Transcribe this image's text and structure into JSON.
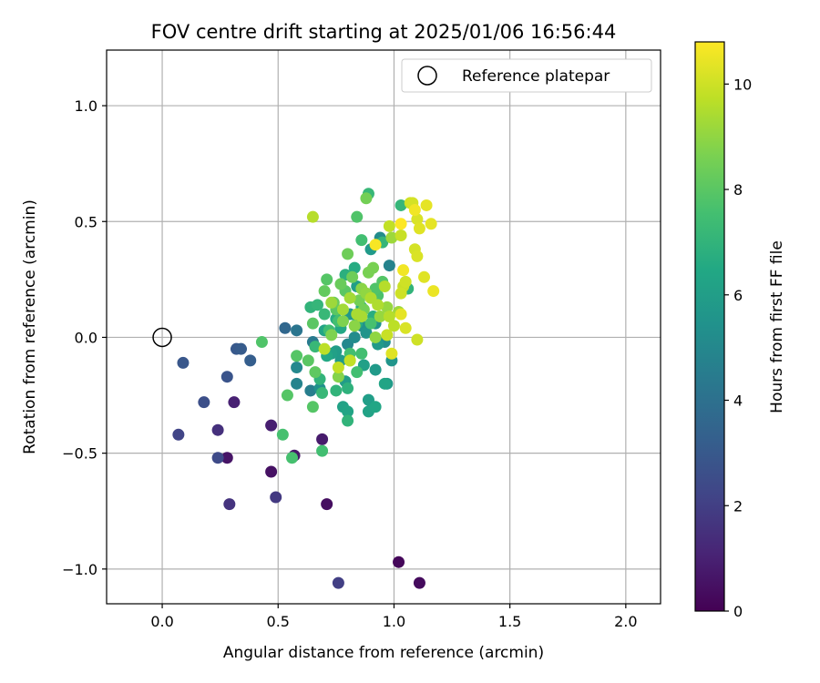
{
  "chart_data": {
    "type": "scatter",
    "title": "FOV centre drift starting at 2025/01/06 16:56:44",
    "xlabel": "Angular distance from reference (arcmin)",
    "ylabel": "Rotation from reference (arcmin)",
    "xlim": [
      -0.24,
      2.15
    ],
    "ylim": [
      -1.15,
      1.24
    ],
    "xticks": [
      0.0,
      0.5,
      1.0,
      1.5,
      2.0
    ],
    "xtick_labels": [
      "0.0",
      "0.5",
      "1.0",
      "1.5",
      "2.0"
    ],
    "yticks": [
      -1.0,
      -0.5,
      0.0,
      0.5,
      1.0
    ],
    "ytick_labels": [
      "−1.0",
      "−0.5",
      "0.0",
      "0.5",
      "1.0"
    ],
    "grid": true,
    "legend": {
      "position": "top-right",
      "entries": [
        "Reference platepar"
      ]
    },
    "reference_point": {
      "x": 0.0,
      "y": 0.0,
      "label": "Reference platepar"
    },
    "colorbar": {
      "label": "Hours from first FF file",
      "colormap": "viridis",
      "range": [
        0,
        10.8
      ],
      "ticks": [
        0,
        2,
        4,
        6,
        8,
        10
      ],
      "tick_labels": [
        "0",
        "2",
        "4",
        "6",
        "8",
        "10"
      ]
    },
    "points": [
      {
        "x": 1.02,
        "y": -0.97,
        "c": 0.2
      },
      {
        "x": 1.11,
        "y": -1.06,
        "c": 0.3
      },
      {
        "x": 0.71,
        "y": -0.72,
        "c": 0.4
      },
      {
        "x": 0.47,
        "y": -0.58,
        "c": 0.5
      },
      {
        "x": 0.28,
        "y": -0.52,
        "c": 0.6
      },
      {
        "x": 0.57,
        "y": -0.51,
        "c": 0.7
      },
      {
        "x": 0.69,
        "y": -0.44,
        "c": 0.8
      },
      {
        "x": 0.47,
        "y": -0.38,
        "c": 0.9
      },
      {
        "x": 0.31,
        "y": -0.28,
        "c": 1.0
      },
      {
        "x": 0.24,
        "y": -0.4,
        "c": 1.5
      },
      {
        "x": 0.29,
        "y": -0.72,
        "c": 1.6
      },
      {
        "x": 0.49,
        "y": -0.69,
        "c": 1.8
      },
      {
        "x": 0.76,
        "y": -1.06,
        "c": 2.0
      },
      {
        "x": 0.07,
        "y": -0.42,
        "c": 2.2
      },
      {
        "x": 0.24,
        "y": -0.52,
        "c": 2.4
      },
      {
        "x": 0.18,
        "y": -0.28,
        "c": 2.6
      },
      {
        "x": 0.28,
        "y": -0.17,
        "c": 2.8
      },
      {
        "x": 0.09,
        "y": -0.11,
        "c": 2.9
      },
      {
        "x": 0.32,
        "y": -0.05,
        "c": 3.0
      },
      {
        "x": 0.34,
        "y": -0.05,
        "c": 3.1
      },
      {
        "x": 0.38,
        "y": -0.1,
        "c": 3.2
      },
      {
        "x": 0.53,
        "y": 0.04,
        "c": 3.6
      },
      {
        "x": 0.58,
        "y": 0.03,
        "c": 4.2
      },
      {
        "x": 0.65,
        "y": -0.02,
        "c": 4.4
      },
      {
        "x": 0.64,
        "y": -0.23,
        "c": 4.6
      },
      {
        "x": 0.58,
        "y": -0.2,
        "c": 4.8
      },
      {
        "x": 0.58,
        "y": -0.13,
        "c": 5.0
      },
      {
        "x": 0.68,
        "y": -0.22,
        "c": 5.4
      },
      {
        "x": 0.8,
        "y": -0.03,
        "c": 5.0
      },
      {
        "x": 0.83,
        "y": 0.0,
        "c": 5.2
      },
      {
        "x": 0.86,
        "y": 0.05,
        "c": 5.4
      },
      {
        "x": 0.88,
        "y": 0.02,
        "c": 5.6
      },
      {
        "x": 0.92,
        "y": 0.06,
        "c": 5.5
      },
      {
        "x": 0.96,
        "y": -0.02,
        "c": 5.3
      },
      {
        "x": 0.98,
        "y": 0.31,
        "c": 4.8
      },
      {
        "x": 0.94,
        "y": 0.43,
        "c": 5.2
      },
      {
        "x": 0.9,
        "y": 0.38,
        "c": 5.8
      },
      {
        "x": 0.92,
        "y": -0.14,
        "c": 5.8
      },
      {
        "x": 0.97,
        "y": -0.2,
        "c": 5.8
      },
      {
        "x": 0.99,
        "y": -0.1,
        "c": 5.6
      },
      {
        "x": 0.93,
        "y": -0.03,
        "c": 5.8
      },
      {
        "x": 0.77,
        "y": -0.1,
        "c": 5.8
      },
      {
        "x": 0.79,
        "y": -0.19,
        "c": 5.9
      },
      {
        "x": 0.75,
        "y": -0.06,
        "c": 5.9
      },
      {
        "x": 0.81,
        "y": 0.1,
        "c": 5.7
      },
      {
        "x": 0.84,
        "y": 0.22,
        "c": 6.0
      },
      {
        "x": 0.87,
        "y": -0.12,
        "c": 6.1
      },
      {
        "x": 0.78,
        "y": -0.3,
        "c": 6.2
      },
      {
        "x": 0.8,
        "y": -0.32,
        "c": 6.3
      },
      {
        "x": 0.89,
        "y": -0.32,
        "c": 6.2
      },
      {
        "x": 0.89,
        "y": -0.27,
        "c": 6.0
      },
      {
        "x": 0.92,
        "y": -0.3,
        "c": 6.4
      },
      {
        "x": 0.96,
        "y": -0.2,
        "c": 6.3
      },
      {
        "x": 0.73,
        "y": -0.07,
        "c": 6.1
      },
      {
        "x": 0.7,
        "y": 0.03,
        "c": 6.3
      },
      {
        "x": 0.77,
        "y": 0.04,
        "c": 6.5
      },
      {
        "x": 0.71,
        "y": -0.08,
        "c": 6.5
      },
      {
        "x": 0.84,
        "y": 0.06,
        "c": 6.6
      },
      {
        "x": 0.75,
        "y": 0.08,
        "c": 6.6
      },
      {
        "x": 0.86,
        "y": 0.13,
        "c": 6.7
      },
      {
        "x": 0.91,
        "y": 0.09,
        "c": 6.7
      },
      {
        "x": 0.79,
        "y": 0.27,
        "c": 6.8
      },
      {
        "x": 0.83,
        "y": 0.3,
        "c": 6.6
      },
      {
        "x": 0.89,
        "y": 0.62,
        "c": 7.2
      },
      {
        "x": 0.95,
        "y": 0.41,
        "c": 7.1
      },
      {
        "x": 1.03,
        "y": 0.57,
        "c": 7.1
      },
      {
        "x": 1.06,
        "y": 0.21,
        "c": 7.0
      },
      {
        "x": 0.8,
        "y": -0.22,
        "c": 6.9
      },
      {
        "x": 0.8,
        "y": -0.36,
        "c": 7.0
      },
      {
        "x": 0.75,
        "y": -0.23,
        "c": 7.0
      },
      {
        "x": 0.69,
        "y": -0.24,
        "c": 7.2
      },
      {
        "x": 0.68,
        "y": -0.18,
        "c": 7.0
      },
      {
        "x": 0.64,
        "y": 0.13,
        "c": 7.0
      },
      {
        "x": 0.67,
        "y": 0.14,
        "c": 7.1
      },
      {
        "x": 0.7,
        "y": 0.1,
        "c": 7.2
      },
      {
        "x": 0.66,
        "y": -0.04,
        "c": 7.2
      },
      {
        "x": 0.72,
        "y": 0.03,
        "c": 7.4
      },
      {
        "x": 0.76,
        "y": 0.07,
        "c": 7.5
      },
      {
        "x": 0.81,
        "y": -0.07,
        "c": 7.5
      },
      {
        "x": 0.84,
        "y": -0.15,
        "c": 7.5
      },
      {
        "x": 0.86,
        "y": -0.07,
        "c": 7.5
      },
      {
        "x": 0.9,
        "y": 0.06,
        "c": 7.6
      },
      {
        "x": 0.93,
        "y": 0.18,
        "c": 7.7
      },
      {
        "x": 0.86,
        "y": 0.42,
        "c": 7.5
      },
      {
        "x": 0.84,
        "y": 0.52,
        "c": 7.8
      },
      {
        "x": 0.88,
        "y": 0.6,
        "c": 8.5
      },
      {
        "x": 0.92,
        "y": 0.21,
        "c": 7.8
      },
      {
        "x": 0.95,
        "y": 0.24,
        "c": 7.9
      },
      {
        "x": 0.71,
        "y": 0.25,
        "c": 7.9
      },
      {
        "x": 0.75,
        "y": 0.12,
        "c": 8.0
      },
      {
        "x": 0.79,
        "y": 0.2,
        "c": 8.0
      },
      {
        "x": 0.65,
        "y": 0.06,
        "c": 8.0
      },
      {
        "x": 0.63,
        "y": -0.1,
        "c": 8.0
      },
      {
        "x": 0.66,
        "y": -0.15,
        "c": 8.1
      },
      {
        "x": 0.58,
        "y": -0.08,
        "c": 7.9
      },
      {
        "x": 0.54,
        "y": -0.25,
        "c": 7.9
      },
      {
        "x": 0.52,
        "y": -0.42,
        "c": 7.6
      },
      {
        "x": 0.56,
        "y": -0.52,
        "c": 7.6
      },
      {
        "x": 0.69,
        "y": -0.49,
        "c": 7.5
      },
      {
        "x": 0.43,
        "y": -0.02,
        "c": 7.8
      },
      {
        "x": 0.65,
        "y": -0.3,
        "c": 7.9
      },
      {
        "x": 0.7,
        "y": 0.2,
        "c": 8.2
      },
      {
        "x": 0.74,
        "y": 0.15,
        "c": 8.3
      },
      {
        "x": 0.77,
        "y": 0.23,
        "c": 8.3
      },
      {
        "x": 0.8,
        "y": 0.36,
        "c": 8.4
      },
      {
        "x": 0.82,
        "y": 0.26,
        "c": 8.4
      },
      {
        "x": 0.85,
        "y": 0.16,
        "c": 8.5
      },
      {
        "x": 0.87,
        "y": 0.12,
        "c": 8.5
      },
      {
        "x": 0.89,
        "y": 0.28,
        "c": 8.6
      },
      {
        "x": 0.91,
        "y": 0.3,
        "c": 8.6
      },
      {
        "x": 0.78,
        "y": 0.07,
        "c": 8.7
      },
      {
        "x": 0.73,
        "y": 0.01,
        "c": 8.7
      },
      {
        "x": 0.76,
        "y": -0.17,
        "c": 8.8
      },
      {
        "x": 0.81,
        "y": -0.1,
        "c": 8.8
      },
      {
        "x": 0.83,
        "y": 0.05,
        "c": 8.9
      },
      {
        "x": 0.86,
        "y": 0.21,
        "c": 8.9
      },
      {
        "x": 0.88,
        "y": 0.19,
        "c": 9.0
      },
      {
        "x": 0.92,
        "y": 0.0,
        "c": 9.0
      },
      {
        "x": 0.94,
        "y": 0.09,
        "c": 9.1
      },
      {
        "x": 0.97,
        "y": 0.13,
        "c": 9.1
      },
      {
        "x": 0.99,
        "y": 0.43,
        "c": 9.2
      },
      {
        "x": 1.02,
        "y": 0.11,
        "c": 9.2
      },
      {
        "x": 0.73,
        "y": 0.15,
        "c": 9.2
      },
      {
        "x": 0.78,
        "y": 0.12,
        "c": 9.3
      },
      {
        "x": 0.81,
        "y": 0.17,
        "c": 9.3
      },
      {
        "x": 0.84,
        "y": 0.1,
        "c": 9.4
      },
      {
        "x": 0.86,
        "y": 0.09,
        "c": 9.4
      },
      {
        "x": 0.9,
        "y": 0.17,
        "c": 9.5
      },
      {
        "x": 0.93,
        "y": 0.14,
        "c": 9.5
      },
      {
        "x": 0.96,
        "y": 0.22,
        "c": 9.6
      },
      {
        "x": 0.98,
        "y": 0.09,
        "c": 9.6
      },
      {
        "x": 1.0,
        "y": 0.05,
        "c": 9.7
      },
      {
        "x": 0.7,
        "y": -0.05,
        "c": 9.7
      },
      {
        "x": 0.76,
        "y": -0.13,
        "c": 9.8
      },
      {
        "x": 0.81,
        "y": -0.1,
        "c": 9.8
      },
      {
        "x": 0.97,
        "y": 0.01,
        "c": 9.9
      },
      {
        "x": 0.65,
        "y": 0.52,
        "c": 9.6
      },
      {
        "x": 0.98,
        "y": 0.48,
        "c": 9.8
      },
      {
        "x": 1.03,
        "y": 0.44,
        "c": 9.9
      },
      {
        "x": 1.04,
        "y": 0.22,
        "c": 9.9
      },
      {
        "x": 1.05,
        "y": 0.24,
        "c": 10.0
      },
      {
        "x": 1.03,
        "y": 0.19,
        "c": 10.0
      },
      {
        "x": 1.07,
        "y": 0.58,
        "c": 10.0
      },
      {
        "x": 1.08,
        "y": 0.58,
        "c": 10.1
      },
      {
        "x": 1.09,
        "y": 0.38,
        "c": 10.1
      },
      {
        "x": 1.1,
        "y": 0.35,
        "c": 10.2
      },
      {
        "x": 1.1,
        "y": 0.51,
        "c": 10.2
      },
      {
        "x": 1.11,
        "y": 0.47,
        "c": 10.3
      },
      {
        "x": 1.13,
        "y": 0.26,
        "c": 10.3
      },
      {
        "x": 1.14,
        "y": 0.57,
        "c": 10.4
      },
      {
        "x": 1.16,
        "y": 0.49,
        "c": 10.4
      },
      {
        "x": 1.17,
        "y": 0.2,
        "c": 10.5
      },
      {
        "x": 1.1,
        "y": -0.01,
        "c": 10.0
      },
      {
        "x": 1.05,
        "y": 0.04,
        "c": 10.2
      },
      {
        "x": 0.99,
        "y": -0.07,
        "c": 10.3
      },
      {
        "x": 1.03,
        "y": 0.1,
        "c": 10.4
      },
      {
        "x": 1.04,
        "y": 0.29,
        "c": 10.6
      },
      {
        "x": 0.92,
        "y": 0.4,
        "c": 10.7
      },
      {
        "x": 1.03,
        "y": 0.49,
        "c": 10.8
      },
      {
        "x": 1.09,
        "y": 0.55,
        "c": 10.6
      }
    ]
  }
}
